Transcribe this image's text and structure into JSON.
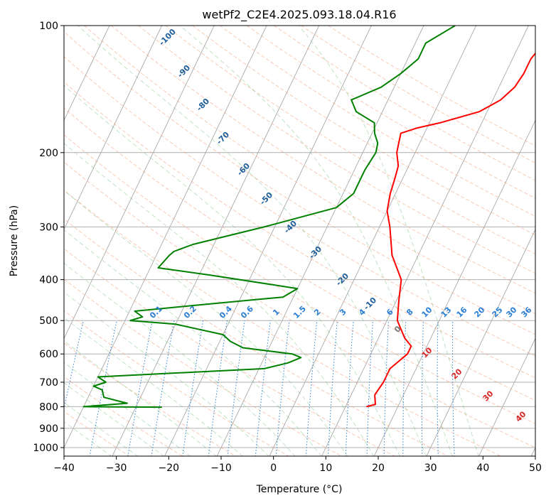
{
  "chart_data": {
    "type": "line",
    "diagram": "skew-T log-P",
    "title": "wetPf2_C2E4.2025.093.18.04.R16",
    "xlabel": "Temperature (°C)",
    "ylabel": "Pressure (hPa)",
    "xlim": [
      -40,
      50
    ],
    "ylim": [
      1050,
      100
    ],
    "y_scale": "log",
    "x_ticks": [
      "−40",
      "−30",
      "−20",
      "−10",
      "0",
      "10",
      "20",
      "30",
      "40",
      "50"
    ],
    "y_ticks": [
      "100",
      "200",
      "300",
      "400",
      "500",
      "600",
      "700",
      "800",
      "900",
      "1000"
    ],
    "grid": true,
    "series": [
      {
        "color": "#ff0000",
        "points": [
          [
            100,
            19
          ],
          [
            110,
            14.5
          ],
          [
            120,
            13.5
          ],
          [
            130,
            13.5
          ],
          [
            140,
            13
          ],
          [
            150,
            11.5
          ],
          [
            160,
            8.5
          ],
          [
            170,
            2
          ],
          [
            175,
            -2
          ],
          [
            180,
            -4.5
          ],
          [
            190,
            -4
          ],
          [
            200,
            -3.5
          ],
          [
            215,
            -2
          ],
          [
            230,
            -1.5
          ],
          [
            250,
            -1
          ],
          [
            275,
            0
          ],
          [
            300,
            2
          ],
          [
            350,
            5
          ],
          [
            400,
            9
          ],
          [
            450,
            10.5
          ],
          [
            500,
            12
          ],
          [
            550,
            15
          ],
          [
            575,
            17
          ],
          [
            600,
            17
          ],
          [
            650,
            15
          ],
          [
            700,
            15
          ],
          [
            750,
            14.5
          ],
          [
            790,
            15.5
          ],
          [
            800,
            14
          ]
        ]
      },
      {
        "color": "#008000",
        "points": [
          [
            100,
            -4
          ],
          [
            110,
            -8
          ],
          [
            120,
            -8
          ],
          [
            130,
            -10
          ],
          [
            140,
            -12.5
          ],
          [
            150,
            -17
          ],
          [
            160,
            -15
          ],
          [
            170,
            -10.5
          ],
          [
            180,
            -9.5
          ],
          [
            190,
            -8
          ],
          [
            200,
            -7.5
          ],
          [
            220,
            -8
          ],
          [
            250,
            -8
          ],
          [
            270,
            -10
          ],
          [
            300,
            -22
          ],
          [
            330,
            -34
          ],
          [
            343,
            -37
          ],
          [
            350,
            -37.5
          ],
          [
            375,
            -38.5
          ],
          [
            390,
            -28
          ],
          [
            420,
            -10
          ],
          [
            440,
            -12
          ],
          [
            460,
            -28
          ],
          [
            475,
            -39
          ],
          [
            490,
            -37
          ],
          [
            500,
            -39
          ],
          [
            510,
            -30
          ],
          [
            540,
            -20
          ],
          [
            560,
            -18
          ],
          [
            580,
            -15
          ],
          [
            600,
            -5
          ],
          [
            612,
            -3
          ],
          [
            630,
            -5
          ],
          [
            650,
            -9
          ],
          [
            680,
            -40
          ],
          [
            700,
            -38
          ],
          [
            715,
            -40
          ],
          [
            730,
            -38
          ],
          [
            760,
            -37
          ],
          [
            785,
            -32
          ],
          [
            800,
            -40
          ],
          [
            802,
            -25
          ]
        ]
      }
    ],
    "isotherm_labels": [],
    "dry_adiabat_labels": [
      "-100",
      "-90",
      "-80",
      "-70",
      "-60",
      "-50",
      "-40",
      "-30",
      "-20",
      "-10",
      "0",
      "10",
      "20",
      "30",
      "40"
    ],
    "mixing_ratio_labels": [
      "0.1",
      "0.2",
      "0.4",
      "0.6",
      "1",
      "1.5",
      "2",
      "3",
      "4",
      "6",
      "8",
      "10",
      "13",
      "16",
      "20",
      "25",
      "30",
      "36"
    ]
  }
}
